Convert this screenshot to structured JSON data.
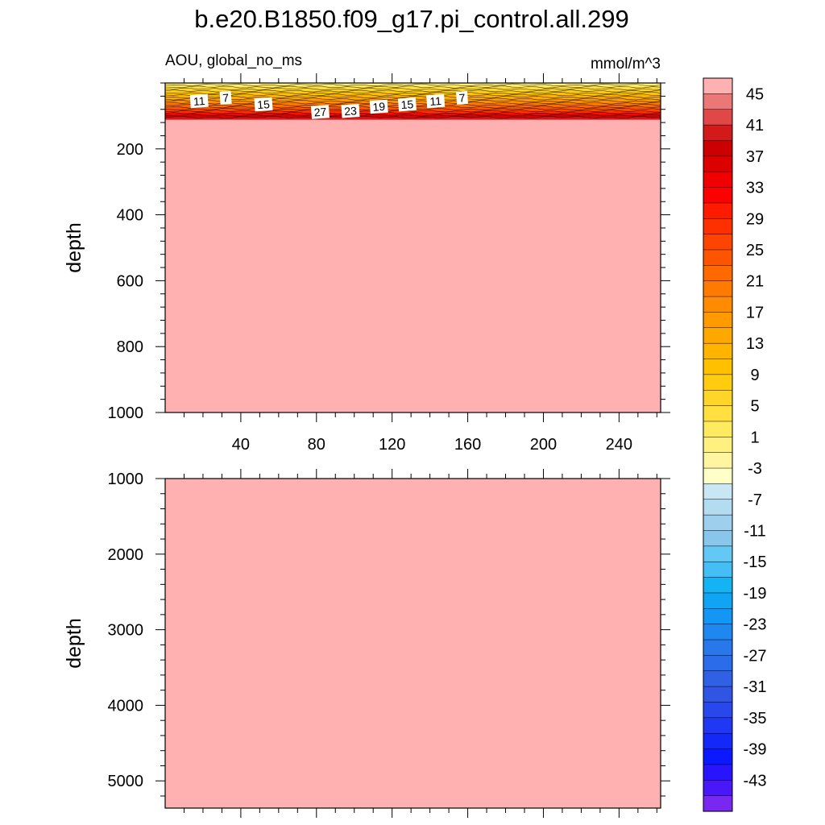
{
  "title": "b.e20.B1850.f09_g17.pi_control.all.299",
  "subtitle_left": "AOU, global_no_ms",
  "subtitle_right": "mmol/m^3",
  "chart_data": [
    {
      "type": "heatmap",
      "panel": "upper",
      "ylabel": "depth",
      "xlim": [
        0,
        262
      ],
      "ylim": [
        1000,
        0
      ],
      "yaxis_reversed": true,
      "x_ticks": [
        40,
        80,
        120,
        160,
        200,
        240
      ],
      "x_tick_labels": [
        "40",
        "80",
        "120",
        "160",
        "200",
        "240"
      ],
      "y_ticks": [
        200,
        400,
        600,
        800,
        1000
      ],
      "y_tick_labels": [
        "200",
        "400",
        "600",
        "800",
        "1000"
      ],
      "fill_below_depth": 110,
      "fill_value": "above 45",
      "surface_gradient": {
        "depth_range": [
          0,
          110
        ],
        "values": [
          1,
          3,
          5,
          7,
          9,
          11,
          13,
          15,
          17,
          19,
          21,
          23,
          25,
          27,
          29,
          33,
          37,
          41
        ]
      },
      "contour_labels": [
        {
          "x": 18,
          "depth": 55,
          "text": "11"
        },
        {
          "x": 32,
          "depth": 45,
          "text": "7"
        },
        {
          "x": 52,
          "depth": 65,
          "text": "15"
        },
        {
          "x": 82,
          "depth": 88,
          "text": "27"
        },
        {
          "x": 98,
          "depth": 85,
          "text": "23"
        },
        {
          "x": 113,
          "depth": 72,
          "text": "19"
        },
        {
          "x": 128,
          "depth": 65,
          "text": "15"
        },
        {
          "x": 143,
          "depth": 55,
          "text": "11"
        },
        {
          "x": 157,
          "depth": 45,
          "text": "7"
        }
      ]
    },
    {
      "type": "heatmap",
      "panel": "lower",
      "ylabel": "depth",
      "xlim": [
        0,
        262
      ],
      "ylim": [
        5360,
        1000
      ],
      "yaxis_reversed": true,
      "x_ticks": [
        40,
        80,
        120,
        160,
        200,
        240
      ],
      "y_ticks": [
        1000,
        2000,
        3000,
        4000,
        5000
      ],
      "y_tick_labels": [
        "1000",
        "2000",
        "3000",
        "4000",
        "5000"
      ],
      "fill_value": "above 45"
    }
  ],
  "colorbar": {
    "labels": [
      "45",
      "41",
      "37",
      "33",
      "29",
      "25",
      "21",
      "17",
      "13",
      "9",
      "5",
      "1",
      "-3",
      "-7",
      "-11",
      "-15",
      "-19",
      "-23",
      "-27",
      "-31",
      "-35",
      "-39",
      "-43"
    ],
    "levels": [
      47,
      45,
      43,
      41,
      39,
      37,
      35,
      33,
      31,
      29,
      27,
      25,
      23,
      21,
      19,
      17,
      15,
      13,
      11,
      9,
      7,
      5,
      3,
      1,
      -1,
      -3,
      -5,
      -7,
      -9,
      -11,
      -13,
      -15,
      -17,
      -19,
      -21,
      -23,
      -25,
      -27,
      -29,
      -31,
      -33,
      -35,
      -37,
      -39,
      -41,
      -43,
      -45
    ],
    "colors": [
      "#ffb0b0",
      "#ec7777",
      "#e04848",
      "#d21a1a",
      "#cc0000",
      "#dd0000",
      "#f00000",
      "#ff0000",
      "#ff1a00",
      "#ff3000",
      "#ff4400",
      "#ff5500",
      "#ff6a00",
      "#ff7a00",
      "#ff8c00",
      "#ff9a00",
      "#ffa800",
      "#ffb400",
      "#ffc000",
      "#ffcc10",
      "#ffd628",
      "#ffe040",
      "#ffea60",
      "#fff080",
      "#fff5a0",
      "#ffffc8",
      "#c8e6f4",
      "#b4dcf0",
      "#9ed0ee",
      "#88c6ec",
      "#64c8f4",
      "#44bef4",
      "#14b4f4",
      "#10a4f4",
      "#1496f4",
      "#1e88f0",
      "#2878ec",
      "#2a6cea",
      "#3060e4",
      "#3054e4",
      "#2848ec",
      "#2038f4",
      "#1428f8",
      "#0c18ff",
      "#2814ff",
      "#4818f8",
      "#7828f0"
    ]
  }
}
